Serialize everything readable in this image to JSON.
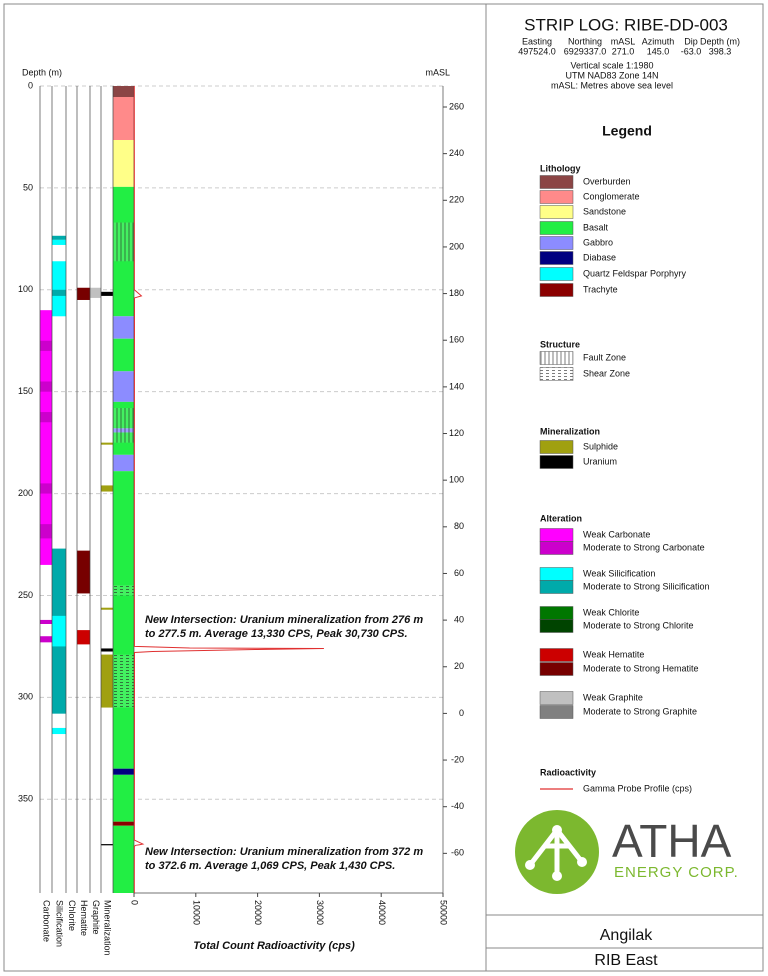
{
  "header": {
    "title": "STRIP LOG: RIBE-DD-003",
    "columns": [
      "Easting",
      "Northing",
      "mASL",
      "Azimuth",
      "Dip",
      "Depth (m)"
    ],
    "values": [
      "497524.0",
      "6929337.0",
      "271.0",
      "145.0",
      "-63.0",
      "398.3"
    ],
    "notes": [
      "Vertical scale 1:1980",
      "UTM NAD83 Zone 14N",
      "mASL: Metres above sea level"
    ]
  },
  "legend": {
    "title": "Legend",
    "sections": [
      {
        "title": "Lithology",
        "items": [
          {
            "label": "Overburden",
            "color": "#8b4545"
          },
          {
            "label": "Conglomerate",
            "color": "#ff8a8a"
          },
          {
            "label": "Sandstone",
            "color": "#ffff88"
          },
          {
            "label": "Basalt",
            "color": "#22ee44"
          },
          {
            "label": "Gabbro",
            "color": "#8c8cff"
          },
          {
            "label": "Diabase",
            "color": "#000080"
          },
          {
            "label": "Quartz Feldspar Porphyry",
            "color": "#00ffff"
          },
          {
            "label": "Trachyte",
            "color": "#8b0000"
          }
        ]
      },
      {
        "title": "Structure",
        "items": [
          {
            "label": "Fault Zone",
            "pattern": "fault"
          },
          {
            "label": "Shear Zone",
            "pattern": "shear"
          }
        ]
      },
      {
        "title": "Mineralization",
        "items": [
          {
            "label": "Sulphide",
            "color": "#a0a010"
          },
          {
            "label": "Uranium",
            "color": "#000000"
          }
        ]
      },
      {
        "title": "Alteration",
        "items": [
          {
            "label": "Weak Carbonate",
            "color": "#ff00ff"
          },
          {
            "label": "Moderate to Strong Carbonate",
            "color": "#cc00cc"
          },
          {
            "label": "Weak Silicification",
            "color": "#00ffff"
          },
          {
            "label": "Moderate to Strong Silicification",
            "color": "#00aaaa"
          },
          {
            "label": "Weak Chlorite",
            "color": "#007700"
          },
          {
            "label": "Moderate to Strong Chlorite",
            "color": "#004400"
          },
          {
            "label": "Weak Hematite",
            "color": "#cc0000"
          },
          {
            "label": "Moderate to Strong Hematite",
            "color": "#770000"
          },
          {
            "label": "Weak Graphite",
            "color": "#c0c0c0"
          },
          {
            "label": "Moderate to Strong Graphite",
            "color": "#808080"
          }
        ]
      },
      {
        "title": "Radioactivity",
        "items": [
          {
            "label": "Gamma Probe Profile (cps)",
            "line": "#e03030"
          }
        ]
      }
    ]
  },
  "logo": {
    "name": "ATHA",
    "subtitle": "ENERGY CORP."
  },
  "footer": {
    "project": "Angilak",
    "area": "RIB East"
  },
  "chart_data": {
    "type": "strip-log",
    "y_label": "Depth (m)",
    "ylim": [
      0,
      396
    ],
    "yticks": [
      0,
      50,
      100,
      150,
      200,
      250,
      300,
      350
    ],
    "y2_label": "mASL",
    "y2lim": [
      269,
      -77
    ],
    "y2ticks": [
      260,
      240,
      220,
      200,
      180,
      160,
      140,
      120,
      100,
      80,
      60,
      40,
      20,
      0,
      -20,
      -40,
      -60
    ],
    "x_label": "Total Count Radioactivity (cps)",
    "xlim": [
      0,
      50000
    ],
    "xticks": [
      0,
      10000,
      20000,
      30000,
      40000,
      50000
    ],
    "grid": true,
    "columns": [
      {
        "name": "Carbonate",
        "intervals": [
          {
            "from": 110,
            "to": 235,
            "color": "#ff00ff"
          },
          {
            "from": 125,
            "to": 130,
            "color": "#cc00cc"
          },
          {
            "from": 145,
            "to": 150,
            "color": "#cc00cc"
          },
          {
            "from": 160,
            "to": 165,
            "color": "#cc00cc"
          },
          {
            "from": 195,
            "to": 200,
            "color": "#cc00cc"
          },
          {
            "from": 215,
            "to": 222,
            "color": "#cc00cc"
          },
          {
            "from": 262,
            "to": 264,
            "color": "#cc00cc"
          },
          {
            "from": 270,
            "to": 273,
            "color": "#cc00cc"
          }
        ]
      },
      {
        "name": "Silicification",
        "intervals": [
          {
            "from": 73.5,
            "to": 75.5,
            "color": "#00aaaa"
          },
          {
            "from": 75.5,
            "to": 78,
            "color": "#00ffff"
          },
          {
            "from": 86,
            "to": 113,
            "color": "#00ffff"
          },
          {
            "from": 100,
            "to": 103,
            "color": "#00aaaa"
          },
          {
            "from": 227,
            "to": 308,
            "color": "#00aaaa"
          },
          {
            "from": 260,
            "to": 275,
            "color": "#00ffff"
          },
          {
            "from": 315,
            "to": 318,
            "color": "#00ffff"
          }
        ]
      },
      {
        "name": "Chlorite",
        "intervals": []
      },
      {
        "name": "Hematite",
        "intervals": [
          {
            "from": 99,
            "to": 105,
            "color": "#770000"
          },
          {
            "from": 228,
            "to": 249,
            "color": "#770000"
          },
          {
            "from": 267,
            "to": 274,
            "color": "#cc0000"
          }
        ]
      },
      {
        "name": "Graphite",
        "intervals": [
          {
            "from": 99,
            "to": 104,
            "color": "#c0c0c0"
          }
        ]
      },
      {
        "name": "Mineralization",
        "intervals": [
          {
            "from": 101,
            "to": 103,
            "color": "#000000"
          },
          {
            "from": 175,
            "to": 176,
            "color": "#a0a010"
          },
          {
            "from": 196,
            "to": 199,
            "color": "#a0a010"
          },
          {
            "from": 256,
            "to": 257,
            "color": "#a0a010"
          },
          {
            "from": 276,
            "to": 277.5,
            "color": "#000000"
          },
          {
            "from": 279,
            "to": 305,
            "color": "#a0a010"
          },
          {
            "from": 372,
            "to": 372.6,
            "color": "#000000"
          }
        ]
      }
    ],
    "lithology": [
      {
        "from": 0,
        "to": 5.4,
        "color": "#8b4545"
      },
      {
        "from": 5.4,
        "to": 26.5,
        "color": "#ff8a8a"
      },
      {
        "from": 26.5,
        "to": 49.5,
        "color": "#ffff88"
      },
      {
        "from": 49.5,
        "to": 113,
        "color": "#22ee44"
      },
      {
        "from": 113,
        "to": 124,
        "color": "#8c8cff"
      },
      {
        "from": 124,
        "to": 140,
        "color": "#22ee44"
      },
      {
        "from": 140,
        "to": 155,
        "color": "#8c8cff"
      },
      {
        "from": 155,
        "to": 168,
        "color": "#22ee44"
      },
      {
        "from": 168,
        "to": 170,
        "color": "#8c8cff"
      },
      {
        "from": 170,
        "to": 181,
        "color": "#22ee44"
      },
      {
        "from": 181,
        "to": 189,
        "color": "#8c8cff"
      },
      {
        "from": 189,
        "to": 335,
        "color": "#22ee44"
      },
      {
        "from": 335,
        "to": 338,
        "color": "#000080"
      },
      {
        "from": 338,
        "to": 361,
        "color": "#22ee44"
      },
      {
        "from": 361,
        "to": 363,
        "color": "#8b0000"
      },
      {
        "from": 363,
        "to": 396,
        "color": "#22ee44"
      }
    ],
    "structure": [
      {
        "from": 67,
        "to": 86,
        "pattern": "fault"
      },
      {
        "from": 158,
        "to": 175,
        "pattern": "fault"
      },
      {
        "from": 245,
        "to": 250,
        "pattern": "shear"
      },
      {
        "from": 279,
        "to": 305,
        "pattern": "shear"
      }
    ],
    "gamma": {
      "color": "#e03030",
      "depth": [
        0,
        100,
        103,
        104,
        200,
        275,
        275.8,
        276,
        276.5,
        277.5,
        278,
        370,
        372,
        372.3,
        372.6,
        373,
        396
      ],
      "values": [
        50,
        60,
        1200,
        80,
        60,
        70,
        9000,
        30730,
        20000,
        3000,
        80,
        60,
        1430,
        900,
        300,
        60,
        50
      ]
    },
    "annotations": [
      [
        "New Intersection: Uranium mineralization from 276 m",
        "to 277.5 m. Average 13,330 CPS, Peak 30,730 CPS."
      ],
      [
        "New Intersection: Uranium mineralization from 372 m",
        "to 372.6 m. Average 1,069 CPS, Peak 1,430 CPS."
      ]
    ]
  }
}
